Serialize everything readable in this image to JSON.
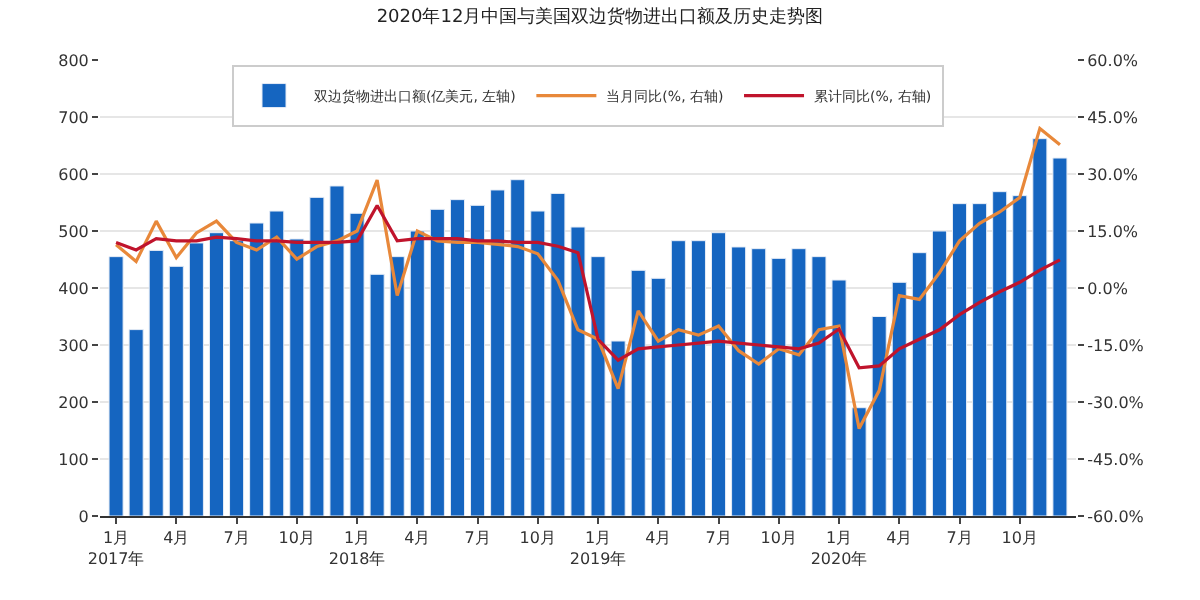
{
  "chart_data": {
    "type": "bar",
    "title": "2020年12月中国与美国双边货物进出口额及历史走势图",
    "categories": [
      "1月\n2017年",
      null,
      null,
      "4月",
      null,
      null,
      "7月",
      null,
      null,
      "10月",
      null,
      null,
      "1月\n2018年",
      null,
      null,
      "4月",
      null,
      null,
      "7月",
      null,
      null,
      "10月",
      null,
      null,
      "1月\n2019年",
      null,
      null,
      "4月",
      null,
      null,
      "7月",
      null,
      null,
      "10月",
      null,
      null,
      "1月\n2020年",
      null,
      null,
      "4月",
      null,
      null,
      "7月",
      null,
      null,
      "10月",
      null,
      null
    ],
    "series": [
      {
        "name": "双边货物进出口额(亿美元, 左轴)",
        "color": "#1565c0",
        "values": [
          455,
          327,
          466,
          438,
          479,
          497,
          483,
          514,
          535,
          486,
          559,
          579,
          531,
          424,
          455,
          500,
          538,
          555,
          545,
          572,
          590,
          535,
          566,
          507,
          455,
          307,
          431,
          417,
          483,
          483,
          497,
          472,
          469,
          452,
          469,
          455,
          414,
          190,
          350,
          410,
          462,
          500,
          548,
          548,
          569,
          562,
          662,
          628
        ]
      },
      {
        "name": "当月同比(%, 右轴)",
        "type": "line",
        "axis": "y2",
        "color": "#e8883a",
        "values": [
          11.4,
          7,
          17.6,
          8,
          14.5,
          17.6,
          12,
          10,
          13.4,
          7.6,
          10.9,
          12.4,
          15,
          28.4,
          -2,
          15,
          12.4,
          12,
          12,
          11.5,
          10.9,
          9,
          2,
          -11,
          -13.5,
          -26.5,
          -6,
          -14,
          -11,
          -12.4,
          -10,
          -16.5,
          -20,
          -16,
          -17.6,
          -11,
          -10,
          -37,
          -27,
          -2,
          -3,
          4,
          12.4,
          17,
          20,
          23.8,
          42,
          37.7
        ]
      },
      {
        "name": "累计同比(%, 右轴)",
        "type": "line",
        "axis": "y2",
        "color": "#c0142c",
        "values": [
          12,
          10,
          13,
          12.4,
          12.4,
          13.4,
          13,
          12.4,
          12.4,
          12,
          12,
          12,
          12.4,
          21.7,
          12.4,
          13,
          13,
          13,
          12.4,
          12.4,
          12,
          12,
          11,
          9.3,
          -13.5,
          -19,
          -16,
          -15.5,
          -15,
          -14.5,
          -14,
          -14.5,
          -15,
          -15.5,
          -16,
          -14.5,
          -10.8,
          -21,
          -20.5,
          -16,
          -13.5,
          -11,
          -7,
          -3.8,
          -1,
          1.5,
          4.7,
          7.4
        ]
      }
    ],
    "ylim": [
      0,
      800
    ],
    "yticks": [
      0,
      100,
      200,
      300,
      400,
      500,
      600,
      700,
      800
    ],
    "y2lim": [
      -60,
      60
    ],
    "y2ticks": [
      {
        "value": -60,
        "label": "-60.0%"
      },
      {
        "value": -45,
        "label": "-45.0%"
      },
      {
        "value": -30,
        "label": "-30.0%"
      },
      {
        "value": -15,
        "label": "-15.0%"
      },
      {
        "value": 0,
        "label": "0.0%"
      },
      {
        "value": 15,
        "label": "15.0%"
      },
      {
        "value": 30,
        "label": "30.0%"
      },
      {
        "value": 45,
        "label": "45.0%"
      },
      {
        "value": 60,
        "label": "60.0%"
      }
    ],
    "grid": "y",
    "legend": "top",
    "marker": "none",
    "line_style": "solid"
  }
}
